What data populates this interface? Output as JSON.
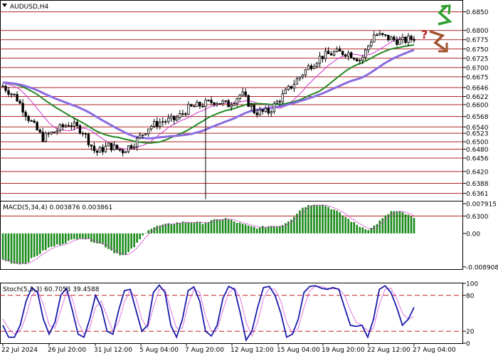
{
  "chart_data": {
    "type": "candlestick",
    "title": "AUDUSD,H4",
    "x_labels": [
      "22 Jul 2024",
      "26 Jul 20:00",
      "31 Jul 12:00",
      "5 Aug 04:00",
      "7 Aug 20:00",
      "12 Aug 12:00",
      "15 Aug 04:00",
      "19 Aug 20:00",
      "22 Aug 12:00",
      "27 Aug 04:00"
    ],
    "main_panel": {
      "ylim": [
        0.6295,
        0.688
      ],
      "y_ticks": [
        "0.6850",
        "0.6800",
        "0.6775",
        "0.6750",
        "0.6725",
        "0.6700",
        "0.6675",
        "0.6646",
        "0.6622",
        "0.6600",
        "0.6568",
        "0.6540",
        "0.6523",
        "0.6500",
        "0.6480",
        "0.6456",
        "0.6420",
        "0.6388",
        "0.6361",
        "0.6300"
      ],
      "level_lines": [
        0.685,
        0.68,
        0.6775,
        0.675,
        0.6725,
        0.67,
        0.6675,
        0.6646,
        0.6622,
        0.66,
        0.6568,
        0.654,
        0.6523,
        0.65,
        0.648,
        0.6456,
        0.642,
        0.6388,
        0.6361,
        0.63
      ],
      "price_anchors": [
        0.665,
        0.662,
        0.656,
        0.651,
        0.653,
        0.655,
        0.653,
        0.647,
        0.649,
        0.6475,
        0.65,
        0.654,
        0.6555,
        0.656,
        0.659,
        0.66,
        0.661,
        0.66,
        0.663,
        0.658,
        0.658,
        0.662,
        0.666,
        0.67,
        0.673,
        0.674,
        0.674,
        0.672,
        0.679,
        0.678,
        0.677,
        0.678
      ],
      "ma_fast_color": "#cc33cc",
      "ma_mid_color": "#228822",
      "ma_slow_color": "#8a6be0",
      "level_color": "#b22222",
      "annotations": {
        "question_mark": "?",
        "up_arrow_color": "#2e9e2e",
        "down_arrow_color": "#a0522d"
      }
    },
    "macd_panel": {
      "label": "MACD(5,34,4) 0.003876 0.003861",
      "y_ticks": [
        "0.007915",
        "0.00",
        "-0.008908"
      ],
      "ylim": [
        -0.0095,
        0.0085
      ],
      "hist_anchors": [
        -0.007,
        -0.008,
        -0.008,
        -0.006,
        -0.004,
        -0.003,
        -0.002,
        -0.001,
        -0.002,
        -0.003,
        -0.005,
        -0.006,
        -0.003,
        0.001,
        0.002,
        0.0025,
        0.003,
        0.003,
        0.0028,
        0.0035,
        0.004,
        0.003,
        0.002,
        0.0015,
        0.002,
        0.002,
        0.004,
        0.007,
        0.0079,
        0.0075,
        0.006,
        0.004,
        0.002,
        0.001,
        0.0035,
        0.006,
        0.0055,
        0.004
      ],
      "bar_color": "#1a8a1a",
      "signal_color": "#cc33cc"
    },
    "stoch_panel": {
      "label": "Stoch(5,3,3) 60.7053 39.4588",
      "y_ticks": [
        "100",
        "80",
        "20",
        "0"
      ],
      "levels": [
        80,
        20
      ],
      "main": [
        30,
        10,
        10,
        30,
        70,
        93,
        85,
        40,
        15,
        35,
        80,
        92,
        55,
        15,
        10,
        40,
        80,
        60,
        20,
        15,
        55,
        88,
        90,
        55,
        20,
        30,
        85,
        97,
        85,
        30,
        10,
        40,
        88,
        94,
        70,
        20,
        12,
        30,
        75,
        95,
        90,
        50,
        5,
        20,
        60,
        93,
        95,
        80,
        50,
        10,
        15,
        40,
        85,
        95,
        96,
        92,
        90,
        93,
        90,
        60,
        30,
        28,
        30,
        10,
        40,
        90,
        96,
        85,
        60,
        30,
        40,
        60
      ],
      "signal": [
        40,
        25,
        15,
        20,
        45,
        80,
        88,
        65,
        30,
        25,
        55,
        85,
        75,
        35,
        15,
        25,
        60,
        70,
        45,
        20,
        35,
        70,
        88,
        75,
        40,
        25,
        60,
        90,
        90,
        55,
        25,
        25,
        65,
        90,
        85,
        45,
        20,
        22,
        55,
        85,
        92,
        75,
        35,
        12,
        35,
        75,
        92,
        90,
        70,
        35,
        15,
        25,
        60,
        88,
        95,
        95,
        92,
        91,
        91,
        80,
        55,
        35,
        30,
        20,
        25,
        65,
        90,
        92,
        75,
        50,
        40,
        45
      ],
      "main_color": "#1a1aaa",
      "signal_color": "#cc33cc",
      "level_color": "#c42020"
    }
  }
}
